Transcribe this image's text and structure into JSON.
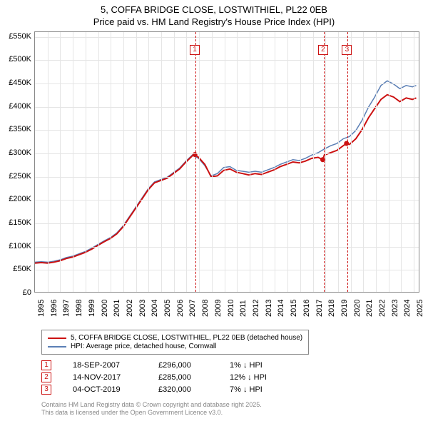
{
  "title_line1": "5, COFFA BRIDGE CLOSE, LOSTWITHIEL, PL22 0EB",
  "title_line2": "Price paid vs. HM Land Registry's House Price Index (HPI)",
  "chart": {
    "type": "line",
    "background_color": "#ffffff",
    "grid_color": "#e5e5e5",
    "border_color": "#888888",
    "y_axis": {
      "min": 0,
      "max": 560000,
      "tick_step": 50000,
      "tick_prefix": "£",
      "tick_suffix": "K",
      "divide_by": 1000,
      "label_fontsize": 11
    },
    "x_axis": {
      "min": 1995,
      "max": 2025.5,
      "ticks": [
        1995,
        1996,
        1997,
        1998,
        1999,
        2000,
        2001,
        2002,
        2003,
        2004,
        2005,
        2006,
        2007,
        2008,
        2009,
        2010,
        2011,
        2012,
        2013,
        2014,
        2015,
        2016,
        2017,
        2018,
        2019,
        2020,
        2021,
        2022,
        2023,
        2024,
        2025
      ],
      "label_fontsize": 11
    },
    "series": [
      {
        "name": "price_paid",
        "label": "5, COFFA BRIDGE CLOSE, LOSTWITHIEL, PL22 0EB (detached house)",
        "color": "#cc1111",
        "line_width": 2,
        "data": [
          [
            1995.0,
            62000
          ],
          [
            1995.5,
            63000
          ],
          [
            1996.0,
            62000
          ],
          [
            1996.5,
            64000
          ],
          [
            1997.0,
            67000
          ],
          [
            1997.5,
            72000
          ],
          [
            1998.0,
            75000
          ],
          [
            1998.5,
            80000
          ],
          [
            1999.0,
            85000
          ],
          [
            1999.5,
            92000
          ],
          [
            2000.0,
            100000
          ],
          [
            2000.5,
            108000
          ],
          [
            2001.0,
            115000
          ],
          [
            2001.5,
            125000
          ],
          [
            2002.0,
            140000
          ],
          [
            2002.5,
            160000
          ],
          [
            2003.0,
            180000
          ],
          [
            2003.5,
            200000
          ],
          [
            2004.0,
            220000
          ],
          [
            2004.5,
            235000
          ],
          [
            2005.0,
            240000
          ],
          [
            2005.5,
            245000
          ],
          [
            2006.0,
            255000
          ],
          [
            2006.5,
            265000
          ],
          [
            2007.0,
            280000
          ],
          [
            2007.5,
            293000
          ],
          [
            2007.71,
            296000
          ],
          [
            2008.0,
            290000
          ],
          [
            2008.5,
            275000
          ],
          [
            2009.0,
            248000
          ],
          [
            2009.5,
            250000
          ],
          [
            2010.0,
            262000
          ],
          [
            2010.5,
            265000
          ],
          [
            2011.0,
            258000
          ],
          [
            2011.5,
            255000
          ],
          [
            2012.0,
            252000
          ],
          [
            2012.5,
            255000
          ],
          [
            2013.0,
            253000
          ],
          [
            2013.5,
            258000
          ],
          [
            2014.0,
            263000
          ],
          [
            2014.5,
            270000
          ],
          [
            2015.0,
            275000
          ],
          [
            2015.5,
            280000
          ],
          [
            2016.0,
            278000
          ],
          [
            2016.5,
            282000
          ],
          [
            2017.0,
            288000
          ],
          [
            2017.5,
            290000
          ],
          [
            2017.87,
            285000
          ],
          [
            2018.0,
            295000
          ],
          [
            2018.5,
            300000
          ],
          [
            2019.0,
            305000
          ],
          [
            2019.5,
            315000
          ],
          [
            2019.76,
            320000
          ],
          [
            2020.0,
            318000
          ],
          [
            2020.5,
            330000
          ],
          [
            2021.0,
            350000
          ],
          [
            2021.5,
            375000
          ],
          [
            2022.0,
            395000
          ],
          [
            2022.5,
            415000
          ],
          [
            2023.0,
            425000
          ],
          [
            2023.5,
            420000
          ],
          [
            2024.0,
            410000
          ],
          [
            2024.5,
            418000
          ],
          [
            2025.0,
            415000
          ],
          [
            2025.3,
            418000
          ]
        ]
      },
      {
        "name": "hpi",
        "label": "HPI: Average price, detached house, Cornwall",
        "color": "#5b7fb5",
        "line_width": 1.5,
        "data": [
          [
            1995.0,
            64000
          ],
          [
            1995.5,
            65000
          ],
          [
            1996.0,
            64000
          ],
          [
            1996.5,
            66000
          ],
          [
            1997.0,
            69000
          ],
          [
            1997.5,
            74000
          ],
          [
            1998.0,
            77000
          ],
          [
            1998.5,
            82000
          ],
          [
            1999.0,
            87000
          ],
          [
            1999.5,
            94000
          ],
          [
            2000.0,
            102000
          ],
          [
            2000.5,
            110000
          ],
          [
            2001.0,
            117000
          ],
          [
            2001.5,
            127000
          ],
          [
            2002.0,
            142000
          ],
          [
            2002.5,
            162000
          ],
          [
            2003.0,
            182000
          ],
          [
            2003.5,
            202000
          ],
          [
            2004.0,
            222000
          ],
          [
            2004.5,
            237000
          ],
          [
            2005.0,
            242000
          ],
          [
            2005.5,
            247000
          ],
          [
            2006.0,
            257000
          ],
          [
            2006.5,
            267000
          ],
          [
            2007.0,
            282000
          ],
          [
            2007.5,
            295000
          ],
          [
            2008.0,
            288000
          ],
          [
            2008.5,
            272000
          ],
          [
            2009.0,
            250000
          ],
          [
            2009.5,
            255000
          ],
          [
            2010.0,
            268000
          ],
          [
            2010.5,
            270000
          ],
          [
            2011.0,
            262000
          ],
          [
            2011.5,
            260000
          ],
          [
            2012.0,
            258000
          ],
          [
            2012.5,
            260000
          ],
          [
            2013.0,
            258000
          ],
          [
            2013.5,
            263000
          ],
          [
            2014.0,
            268000
          ],
          [
            2014.5,
            275000
          ],
          [
            2015.0,
            280000
          ],
          [
            2015.5,
            285000
          ],
          [
            2016.0,
            283000
          ],
          [
            2016.5,
            288000
          ],
          [
            2017.0,
            295000
          ],
          [
            2017.5,
            300000
          ],
          [
            2018.0,
            308000
          ],
          [
            2018.5,
            315000
          ],
          [
            2019.0,
            320000
          ],
          [
            2019.5,
            330000
          ],
          [
            2020.0,
            335000
          ],
          [
            2020.5,
            348000
          ],
          [
            2021.0,
            370000
          ],
          [
            2021.5,
            398000
          ],
          [
            2022.0,
            420000
          ],
          [
            2022.5,
            445000
          ],
          [
            2023.0,
            455000
          ],
          [
            2023.5,
            448000
          ],
          [
            2024.0,
            438000
          ],
          [
            2024.5,
            445000
          ],
          [
            2025.0,
            442000
          ],
          [
            2025.3,
            445000
          ]
        ]
      }
    ],
    "markers": [
      {
        "id": "1",
        "x": 2007.71,
        "y_top": 520000,
        "color": "#cc1111"
      },
      {
        "id": "2",
        "x": 2017.87,
        "y_top": 520000,
        "color": "#cc1111"
      },
      {
        "id": "3",
        "x": 2019.76,
        "y_top": 520000,
        "color": "#cc1111"
      }
    ],
    "sale_points": [
      {
        "x": 2007.71,
        "y": 296000,
        "color": "#cc1111"
      },
      {
        "x": 2017.87,
        "y": 285000,
        "color": "#cc1111"
      },
      {
        "x": 2019.76,
        "y": 320000,
        "color": "#cc1111"
      }
    ]
  },
  "legend": {
    "items": [
      {
        "color": "#cc1111",
        "label": "5, COFFA BRIDGE CLOSE, LOSTWITHIEL, PL22 0EB (detached house)"
      },
      {
        "color": "#5b7fb5",
        "label": "HPI: Average price, detached house, Cornwall"
      }
    ]
  },
  "transactions": [
    {
      "id": "1",
      "date": "18-SEP-2007",
      "price": "£296,000",
      "pct": "1% ↓ HPI",
      "color": "#cc1111"
    },
    {
      "id": "2",
      "date": "14-NOV-2017",
      "price": "£285,000",
      "pct": "12% ↓ HPI",
      "color": "#cc1111"
    },
    {
      "id": "3",
      "date": "04-OCT-2019",
      "price": "£320,000",
      "pct": "7% ↓ HPI",
      "color": "#cc1111"
    }
  ],
  "footer_line1": "Contains HM Land Registry data © Crown copyright and database right 2025.",
  "footer_line2": "This data is licensed under the Open Government Licence v3.0."
}
